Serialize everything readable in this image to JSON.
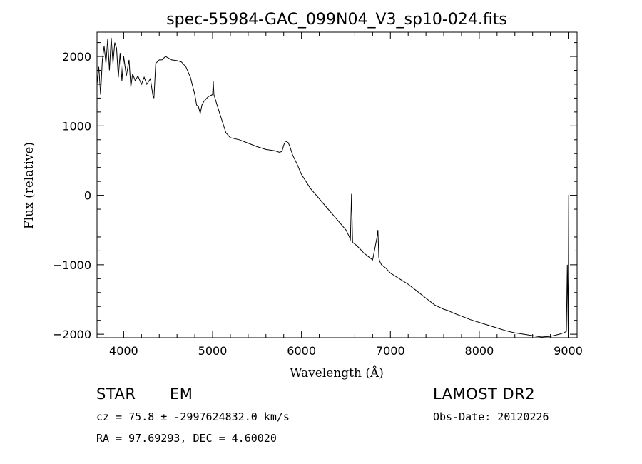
{
  "chart_data": {
    "type": "line",
    "title": "spec-55984-GAC_099N04_V3_sp10-024.fits",
    "xlabel": "Wavelength (Å)",
    "ylabel": "Flux (relative)",
    "xlim": [
      3700,
      9100
    ],
    "ylim": [
      -2050,
      2350
    ],
    "x_ticks": [
      4000,
      5000,
      6000,
      7000,
      8000,
      9000
    ],
    "y_ticks": [
      -2000,
      -1000,
      0,
      1000,
      2000
    ],
    "x_tick_labels": [
      "4000",
      "5000",
      "6000",
      "7000",
      "8000",
      "9000"
    ],
    "y_tick_labels": [
      "-2000",
      "-1000",
      "0",
      "1000",
      "2000"
    ],
    "grid": false,
    "series": [
      {
        "x": [
          3700,
          3720,
          3740,
          3760,
          3780,
          3800,
          3820,
          3840,
          3860,
          3880,
          3900,
          3920,
          3940,
          3960,
          3980,
          4000,
          4030,
          4060,
          4080,
          4100,
          4130,
          4160,
          4200,
          4230,
          4260,
          4300,
          4330,
          4340,
          4360,
          4400,
          4430,
          4470,
          4500,
          4540,
          4600,
          4650,
          4700,
          4750,
          4800,
          4820,
          4840,
          4861,
          4880,
          4900,
          4950,
          5000,
          5007,
          5015,
          5050,
          5100,
          5150,
          5200,
          5300,
          5400,
          5500,
          5600,
          5700,
          5750,
          5780,
          5800,
          5820,
          5850,
          5870,
          5900,
          5950,
          6000,
          6100,
          6200,
          6300,
          6400,
          6500,
          6540,
          6550,
          6563,
          6575,
          6600,
          6650,
          6700,
          6750,
          6800,
          6850,
          6860,
          6870,
          6880,
          6900,
          6950,
          7000,
          7100,
          7200,
          7300,
          7400,
          7500,
          7600,
          7650,
          7700,
          7800,
          7900,
          8000,
          8100,
          8200,
          8300,
          8400,
          8500,
          8600,
          8700,
          8800,
          8900,
          8950,
          8980,
          8990,
          9000,
          9005,
          9010
        ],
        "y": [
          1600,
          1850,
          1450,
          1950,
          2150,
          1900,
          2250,
          1800,
          2270,
          1900,
          2200,
          2120,
          1700,
          2050,
          1650,
          2000,
          1720,
          1950,
          1560,
          1750,
          1650,
          1720,
          1600,
          1700,
          1600,
          1680,
          1430,
          1400,
          1900,
          1950,
          1950,
          2000,
          1980,
          1950,
          1940,
          1920,
          1850,
          1700,
          1450,
          1300,
          1280,
          1180,
          1300,
          1350,
          1420,
          1450,
          1650,
          1450,
          1300,
          1100,
          900,
          830,
          800,
          750,
          700,
          660,
          640,
          620,
          630,
          720,
          780,
          760,
          700,
          580,
          450,
          300,
          100,
          -50,
          -200,
          -350,
          -500,
          -600,
          -650,
          20,
          -680,
          -700,
          -760,
          -830,
          -880,
          -930,
          -600,
          -500,
          -900,
          -950,
          -1000,
          -1050,
          -1120,
          -1200,
          -1280,
          -1380,
          -1480,
          -1580,
          -1640,
          -1660,
          -1690,
          -1740,
          -1790,
          -1830,
          -1870,
          -1910,
          -1950,
          -1980,
          -2000,
          -2020,
          -2040,
          -2030,
          -2000,
          -1980,
          -1960,
          -1000,
          -1950,
          0,
          0
        ]
      }
    ]
  },
  "footer": {
    "class_label": "STAR",
    "subclass_label": "EM",
    "survey_label": "LAMOST DR2",
    "cz_text": "cz = 75.8 ± -2997624832.0 km/s",
    "obs_date_text": "Obs-Date: 20120226",
    "coords_text": "RA =  97.69293, DEC =   4.60020"
  }
}
